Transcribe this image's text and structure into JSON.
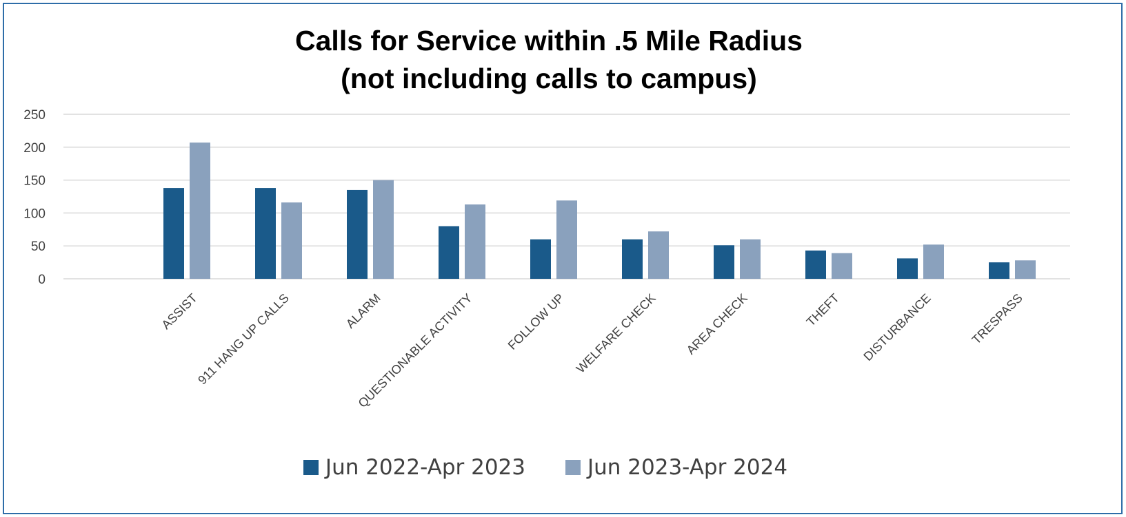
{
  "chart_data": {
    "type": "bar",
    "title": "Calls for Service within .5 Mile Radius\n(not including calls to campus)",
    "title_lines": [
      "Calls for Service within .5 Mile Radius",
      "(not including calls to campus)"
    ],
    "xlabel": "",
    "ylabel": "",
    "ylim": [
      0,
      250
    ],
    "yticks": [
      0,
      50,
      100,
      150,
      200,
      250
    ],
    "grid": true,
    "legend_position": "bottom",
    "categories": [
      "ASSIST",
      "911 HANG UP CALLS",
      "ALARM",
      "QUESTIONABLE ACTIVITY",
      "FOLLOW UP",
      "WELFARE CHECK",
      "AREA CHECK",
      "THEFT",
      "DISTURBANCE",
      "TRESPASS"
    ],
    "series": [
      {
        "name": "Jun 2022-Apr 2023",
        "color": "#1a5a8a",
        "values": [
          138,
          138,
          135,
          80,
          60,
          60,
          51,
          43,
          31,
          25
        ]
      },
      {
        "name": "Jun 2023-Apr 2024",
        "color": "#8aa1bd",
        "values": [
          207,
          116,
          150,
          113,
          119,
          72,
          60,
          39,
          52,
          28
        ]
      }
    ]
  },
  "colors": {
    "frame_border": "#2e6da8",
    "gridline": "#d9d9d9",
    "tick_text": "#404040"
  }
}
